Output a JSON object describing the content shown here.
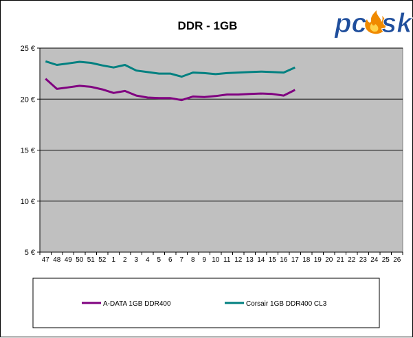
{
  "chart_data": {
    "type": "line",
    "title": "DDR - 1GB",
    "xlabel": "",
    "ylabel": "",
    "categories": [
      "47",
      "48",
      "49",
      "50",
      "51",
      "52",
      "1",
      "2",
      "3",
      "4",
      "5",
      "6",
      "7",
      "8",
      "9",
      "10",
      "11",
      "12",
      "13",
      "14",
      "15",
      "16",
      "17",
      "18",
      "19",
      "20",
      "21",
      "22",
      "23",
      "24",
      "25",
      "26"
    ],
    "y_ticks": [
      {
        "value": 5,
        "label": "5 €"
      },
      {
        "value": 10,
        "label": "10 €"
      },
      {
        "value": 15,
        "label": "15 €"
      },
      {
        "value": 20,
        "label": "20 €"
      },
      {
        "value": 25,
        "label": "25 €"
      }
    ],
    "ylim": [
      5,
      25
    ],
    "grid": true,
    "legend_position": "bottom",
    "series": [
      {
        "name": "A-DATA 1GB DDR400",
        "color": "#800080",
        "values": [
          22.0,
          21.0,
          21.15,
          21.3,
          21.2,
          20.95,
          20.6,
          20.8,
          20.35,
          20.15,
          20.1,
          20.1,
          19.9,
          20.25,
          20.2,
          20.3,
          20.45,
          20.45,
          20.5,
          20.55,
          20.5,
          20.35,
          20.9,
          null,
          null,
          null,
          null,
          null,
          null,
          null,
          null,
          null
        ]
      },
      {
        "name": "Corsair 1GB DDR400 CL3",
        "color": "#008080",
        "values": [
          23.7,
          23.35,
          23.5,
          23.65,
          23.55,
          23.3,
          23.1,
          23.35,
          22.8,
          22.65,
          22.5,
          22.5,
          22.2,
          22.6,
          22.55,
          22.45,
          22.55,
          22.6,
          22.65,
          22.7,
          22.65,
          22.6,
          23.1,
          null,
          null,
          null,
          null,
          null,
          null,
          null,
          null,
          null
        ]
      }
    ]
  },
  "logo": {
    "text_dark": "pc",
    "text_light": "sk",
    "dark_color": "#1f4e9c",
    "flame_color": "#f08a00"
  }
}
